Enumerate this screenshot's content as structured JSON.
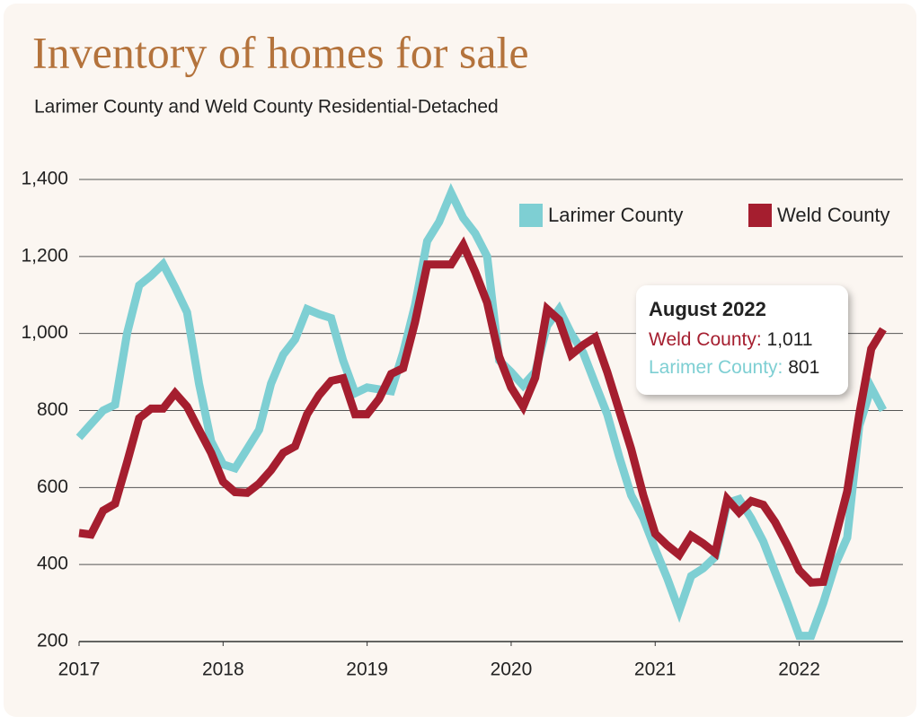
{
  "chart_data": {
    "type": "line",
    "title": "Inventory of homes for sale",
    "subtitle": "Larimer County and Weld County Residential-Detached",
    "x": [
      2017,
      2017.083,
      2017.167,
      2017.25,
      2017.333,
      2017.417,
      2017.5,
      2017.583,
      2017.667,
      2017.75,
      2017.833,
      2017.917,
      2018,
      2018.083,
      2018.167,
      2018.25,
      2018.333,
      2018.417,
      2018.5,
      2018.583,
      2018.667,
      2018.75,
      2018.833,
      2018.917,
      2019,
      2019.083,
      2019.167,
      2019.25,
      2019.333,
      2019.417,
      2019.5,
      2019.583,
      2019.667,
      2019.75,
      2019.833,
      2019.917,
      2020,
      2020.083,
      2020.167,
      2020.25,
      2020.333,
      2020.417,
      2020.5,
      2020.583,
      2020.667,
      2020.75,
      2020.833,
      2020.917,
      2021,
      2021.083,
      2021.167,
      2021.25,
      2021.333,
      2021.417,
      2021.5,
      2021.583,
      2021.667,
      2021.75,
      2021.833,
      2021.917,
      2022,
      2022.083,
      2022.167,
      2022.25,
      2022.333,
      2022.417,
      2022.5,
      2022.583
    ],
    "series": [
      {
        "name": "Larimer County",
        "color": "#7ecfd3",
        "values": [
          730,
          765,
          800,
          815,
          1000,
          1125,
          1150,
          1180,
          1120,
          1055,
          870,
          720,
          660,
          650,
          700,
          750,
          870,
          945,
          985,
          1063,
          1050,
          1040,
          930,
          845,
          860,
          855,
          850,
          950,
          1074,
          1240,
          1290,
          1365,
          1300,
          1260,
          1200,
          930,
          900,
          865,
          900,
          1020,
          1063,
          1000,
          950,
          870,
          790,
          680,
          580,
          520,
          440,
          365,
          280,
          370,
          390,
          420,
          560,
          570,
          520,
          460,
          380,
          300,
          215,
          215,
          300,
          400,
          470,
          760,
          860,
          801
        ]
      },
      {
        "name": "Weld County",
        "color": "#a51e2f",
        "values": [
          482,
          478,
          540,
          558,
          665,
          780,
          805,
          805,
          845,
          810,
          750,
          690,
          615,
          588,
          586,
          610,
          645,
          690,
          707,
          790,
          840,
          877,
          884,
          790,
          790,
          830,
          895,
          910,
          1030,
          1179,
          1179,
          1179,
          1230,
          1160,
          1080,
          940,
          860,
          810,
          885,
          1063,
          1035,
          945,
          970,
          990,
          900,
          800,
          700,
          580,
          480,
          450,
          425,
          475,
          455,
          430,
          570,
          535,
          565,
          555,
          510,
          450,
          385,
          353,
          355,
          470,
          590,
          790,
          960,
          1011
        ]
      }
    ],
    "xlim": [
      2017,
      2022.72
    ],
    "xticks": [
      2017,
      2018,
      2019,
      2020,
      2021,
      2022
    ],
    "ylim": [
      200,
      1400
    ],
    "yticks": [
      200,
      400,
      600,
      800,
      {
        "value": 1000,
        "label": "1,000"
      },
      {
        "value": 1200,
        "label": "1,200"
      },
      {
        "value": 1400,
        "label": "1,400"
      }
    ],
    "grid": true,
    "legend": "top-right",
    "callout": {
      "title": "August 2022",
      "lines": [
        {
          "label": "Weld County:",
          "value": "1,011"
        },
        {
          "label": "Larimer County:",
          "value": "801"
        }
      ]
    }
  }
}
